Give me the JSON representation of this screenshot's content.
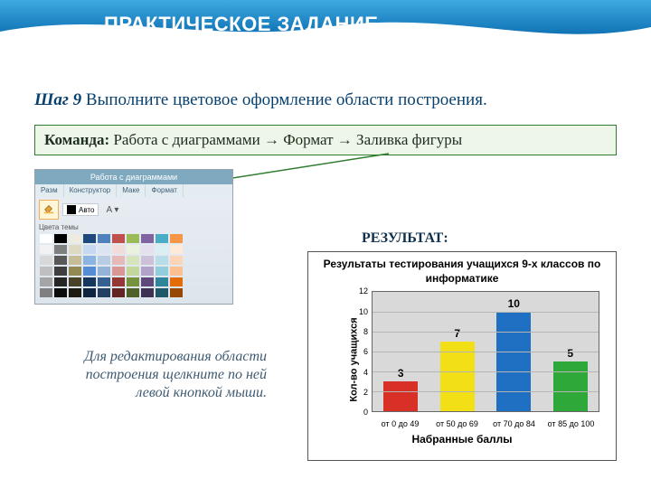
{
  "header": {
    "title": "ПРАКТИЧЕСКОЕ ЗАДАНИЕ",
    "gradient_from": "#3da9e0",
    "gradient_to": "#1073b5",
    "title_color": "#ffffff",
    "title_fontsize": 22
  },
  "step": {
    "label": "Шаг 9",
    "text": " Выполните цветовое оформление области построения.",
    "color": "#084170",
    "fontsize": 19
  },
  "command": {
    "label": "Команда:",
    "text": " Работа с диаграммами → Формат → Заливка фигуры",
    "border_color": "#2f7d2f",
    "bg_color": "#eef6ea",
    "fontsize": 17
  },
  "ribbon": {
    "header": "Работа с диаграммами",
    "tabs": [
      "Разм",
      "Конструктор",
      "Маке",
      "Формат"
    ],
    "auto_label": "Авто",
    "palette_label": "Цвета темы",
    "theme_row": [
      "#ffffff",
      "#000000",
      "#eeece1",
      "#1f497d",
      "#4f81bd",
      "#c0504d",
      "#9bbb59",
      "#8064a2",
      "#4bacc6",
      "#f79646"
    ],
    "shade_rows": [
      [
        "#f2f2f2",
        "#7f7f7f",
        "#ddd9c3",
        "#c6d9f0",
        "#dbe5f1",
        "#f2dcdb",
        "#ebf1dd",
        "#e5e0ec",
        "#dbeef3",
        "#fdeada"
      ],
      [
        "#d8d8d8",
        "#595959",
        "#c4bd97",
        "#8db3e2",
        "#b8cce4",
        "#e5b9b7",
        "#d7e3bc",
        "#ccc1d9",
        "#b7dde8",
        "#fbd5b5"
      ],
      [
        "#bfbfbf",
        "#3f3f3f",
        "#938953",
        "#548dd4",
        "#95b3d7",
        "#d99694",
        "#c3d69b",
        "#b2a2c7",
        "#92cddc",
        "#fac08f"
      ],
      [
        "#a5a5a5",
        "#262626",
        "#494429",
        "#17365d",
        "#366092",
        "#953734",
        "#76923c",
        "#5f497a",
        "#31859b",
        "#e36c09"
      ],
      [
        "#7f7f7f",
        "#0c0c0c",
        "#1d1b10",
        "#0f243e",
        "#244061",
        "#632423",
        "#4f6128",
        "#3f3151",
        "#205867",
        "#974806"
      ]
    ]
  },
  "arrow": {
    "color": "#2f7d2f"
  },
  "hint": {
    "text": "Для редактирования области построения щелкните по ней левой кнопкой мыши.",
    "color": "#3e5a72",
    "fontsize": 16
  },
  "result_label": "РЕЗУЛЬТАТ:",
  "chart": {
    "type": "bar",
    "title": "Результаты тестирования учащихся 9-х классов по информатике",
    "title_fontsize": 12,
    "ylabel": "Кол-во учащихся",
    "xlabel": "Набранные баллы",
    "label_fontsize": 12,
    "categories": [
      "от 0  до 49",
      "от 50 до 69",
      "от 70 до 84",
      "от 85 до 100"
    ],
    "values": [
      3,
      7,
      10,
      5
    ],
    "bar_colors": [
      "#d83027",
      "#f2df15",
      "#1f6fc2",
      "#2fa83a"
    ],
    "plot_bg": "#d9d9d9",
    "ylim": [
      0,
      12
    ],
    "ytick_step": 2,
    "grid_color": "#b5b5b5",
    "frame_border": "#555555",
    "bar_width": 0.7
  }
}
